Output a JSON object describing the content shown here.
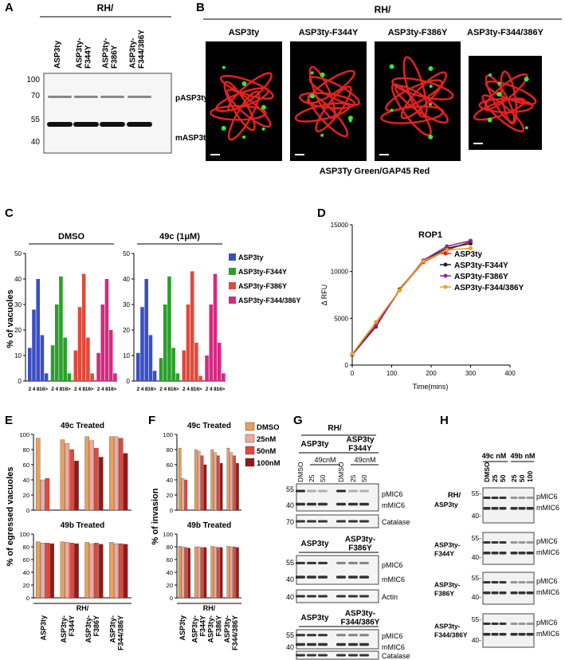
{
  "panel_labels": [
    "A",
    "B",
    "C",
    "D",
    "E",
    "F",
    "G",
    "H"
  ],
  "blot_A": {
    "group": "RH/",
    "lanes": [
      [
        "ASP3ty"
      ],
      [
        "ASP3ty-",
        "F344Y"
      ],
      [
        "ASP3ty-",
        "F386Y"
      ],
      [
        "ASP3ty-",
        "F344/386Y"
      ]
    ],
    "markers": [
      100,
      70,
      55,
      40
    ],
    "bands": [
      "pASP3ty",
      "mASP3ty"
    ]
  },
  "micrographs_B": {
    "group": "RH/",
    "titles": [
      "ASP3ty",
      "ASP3ty-F344Y",
      "ASP3ty-F386Y",
      "ASP3ty-F344/386Y"
    ],
    "caption": "ASP3Ty Green/GAP45 Red"
  },
  "chart_data": [
    {
      "type": "bar",
      "ylabel": "% of vacuoles",
      "ylim": [
        0,
        50
      ],
      "yticks": [
        0,
        10,
        20,
        30,
        40,
        50
      ],
      "bins": [
        "2",
        "4",
        "8",
        "16",
        ">"
      ],
      "series": [
        {
          "name": "ASP3ty",
          "color": "#3a4fc4"
        },
        {
          "name": "ASP3ty-F344Y",
          "color": "#2aa02a"
        },
        {
          "name": "ASP3ty-F386Y",
          "color": "#e04a3a"
        },
        {
          "name": "ASP3ty-F344/386Y",
          "color": "#d42a80"
        }
      ],
      "groups": [
        {
          "title": "DMSO",
          "values": [
            [
              13,
              28,
              40,
              18,
              3
            ],
            [
              14,
              30,
              41,
              17,
              3
            ],
            [
              12,
              29,
              42,
              17,
              3
            ],
            [
              11,
              30,
              40,
              20,
              3
            ]
          ]
        },
        {
          "title": "49c (1μM)",
          "values": [
            [
              11,
              29,
              40,
              18,
              4
            ],
            [
              9,
              30,
              41,
              13,
              3
            ],
            [
              12,
              30,
              43,
              15,
              2
            ],
            [
              10,
              30,
              42,
              15,
              3
            ]
          ]
        }
      ]
    },
    {
      "type": "line",
      "title": "ROP1",
      "xlabel": "Time(mins)",
      "ylabel": "Δ RFU",
      "x": [
        0,
        60,
        120,
        180,
        240,
        300
      ],
      "xlim": [
        0,
        400
      ],
      "xticks": [
        0,
        100,
        200,
        300,
        400
      ],
      "ylim": [
        0,
        15000
      ],
      "yticks": [
        0,
        5000,
        10000,
        15000
      ],
      "series": [
        {
          "name": "ASP3ty",
          "color": "#e02020",
          "values": [
            1200,
            4300,
            8000,
            11000,
            12300,
            13200
          ]
        },
        {
          "name": "ASP3ty-F344Y",
          "color": "#222222",
          "values": [
            1100,
            4100,
            8100,
            11100,
            12500,
            13000
          ]
        },
        {
          "name": "ASP3ty-F386Y",
          "color": "#8a2a8a",
          "values": [
            1150,
            4200,
            8000,
            11200,
            12700,
            13300
          ]
        },
        {
          "name": "ASP3ty-F344/386Y",
          "color": "#f0a020",
          "values": [
            1200,
            4600,
            8000,
            11100,
            12300,
            12500
          ]
        }
      ]
    },
    {
      "type": "bar",
      "ylabel": "% of egressed vacuoles",
      "xlabel": "RH/",
      "ylim": [
        0,
        100
      ],
      "yticks": [
        0,
        20,
        40,
        60,
        80,
        100
      ],
      "categories": [
        [
          "ASP3ty"
        ],
        [
          "ASP3ty-",
          "F344Y"
        ],
        [
          "ASP3ty-",
          "F386Y"
        ],
        [
          "ASP3ty-",
          "F344/386Y"
        ]
      ],
      "colors": [
        "#e8a05a",
        "#f0a8a0",
        "#e2483c",
        "#8e1b1b"
      ],
      "subplots": [
        {
          "title": "49c Treated",
          "values": [
            [
              95,
              40,
              42,
              null
            ],
            [
              93,
              88,
              80,
              65
            ],
            [
              97,
              92,
              82,
              70
            ],
            [
              97,
              97,
              95,
              75
            ]
          ]
        },
        {
          "title": "49b Treated",
          "values": [
            [
              88,
              86,
              86,
              85
            ],
            [
              88,
              87,
              86,
              85
            ],
            [
              87,
              85,
              86,
              84
            ],
            [
              87,
              85,
              85,
              84
            ]
          ]
        }
      ]
    },
    {
      "type": "bar",
      "ylabel": "% of invasion",
      "xlabel": "RH/",
      "ylim": [
        0,
        100
      ],
      "yticks": [
        0,
        20,
        40,
        60,
        80,
        100
      ],
      "categories": [
        [
          "ASP3ty"
        ],
        [
          "ASP3ty-",
          "F344Y"
        ],
        [
          "ASP3ty-",
          "F386Y"
        ],
        [
          "ASP3ty-",
          "F344/386Y"
        ]
      ],
      "series": [
        {
          "name": "DMSO",
          "color": "#e8a05a"
        },
        {
          "name": "25nM",
          "color": "#f0a8a0"
        },
        {
          "name": "50nM",
          "color": "#e2483c"
        },
        {
          "name": "100nM",
          "color": "#8e1b1b"
        }
      ],
      "subplots": [
        {
          "title": "49c Treated",
          "values": [
            [
              82,
              42,
              40,
              null
            ],
            [
              80,
              78,
              72,
              60
            ],
            [
              80,
              76,
              72,
              62
            ],
            [
              82,
              76,
              72,
              62
            ]
          ]
        },
        {
          "title": "49b Treated",
          "values": [
            [
              81,
              80,
              79,
              78
            ],
            [
              80,
              80,
              79,
              79
            ],
            [
              81,
              80,
              79,
              79
            ],
            [
              81,
              80,
              80,
              79
            ]
          ]
        }
      ]
    }
  ],
  "blots_G": {
    "group": "RH/",
    "treatment": "49cnM",
    "lanes": [
      "DMSO",
      "25",
      "50",
      "DMSO",
      "25",
      "50"
    ],
    "sections": [
      {
        "strains": [
          [
            "ASP3ty"
          ],
          [
            "ASP3ty",
            "F344Y"
          ]
        ],
        "markers": [
          55,
          40
        ],
        "bands": [
          "pMIC6",
          "mMIC6"
        ],
        "loading": {
          "marker": 70,
          "name": "Catalase"
        }
      },
      {
        "strains": [
          [
            "ASP3ty"
          ],
          [
            "ASP3ty-",
            "F386Y"
          ]
        ],
        "markers": [
          55,
          40
        ],
        "bands": [
          "pMIC6",
          "mMIC6"
        ],
        "loading": {
          "marker": 40,
          "name": "Actin"
        }
      },
      {
        "strains": [
          [
            "ASP3ty"
          ],
          [
            "ASP3ty-",
            "F344/386Y"
          ]
        ],
        "markers": [
          55,
          40
        ],
        "bands": [
          "pMIC6",
          "mMIC6"
        ],
        "loading": {
          "name": "Catalase"
        }
      }
    ]
  },
  "blots_H": {
    "group": "RH/",
    "treatments": [
      "49c nM",
      "49b nM"
    ],
    "lanes": [
      "DMSO",
      "25",
      "50",
      "25",
      "50",
      "100"
    ],
    "rows": [
      {
        "strain": [
          "ASP3ty"
        ],
        "markers": [
          "55-",
          "40-"
        ],
        "bands": [
          "pMIC6",
          "mMIC6"
        ]
      },
      {
        "strain": [
          "ASP3ty-",
          "F344Y"
        ],
        "markers": [
          "55-",
          "40-"
        ],
        "bands": [
          "pMIC6",
          "mMIC6"
        ]
      },
      {
        "strain": [
          "ASP3ty-",
          "F386Y"
        ],
        "markers": [
          "55-",
          "40-"
        ],
        "bands": [
          "pMIC6",
          "mMIC6"
        ]
      },
      {
        "strain": [
          "ASP3ty-",
          "F344/386Y"
        ],
        "markers": [
          "55-",
          "40-"
        ],
        "bands": [
          "pMIC6",
          "mMIC6"
        ]
      }
    ]
  }
}
